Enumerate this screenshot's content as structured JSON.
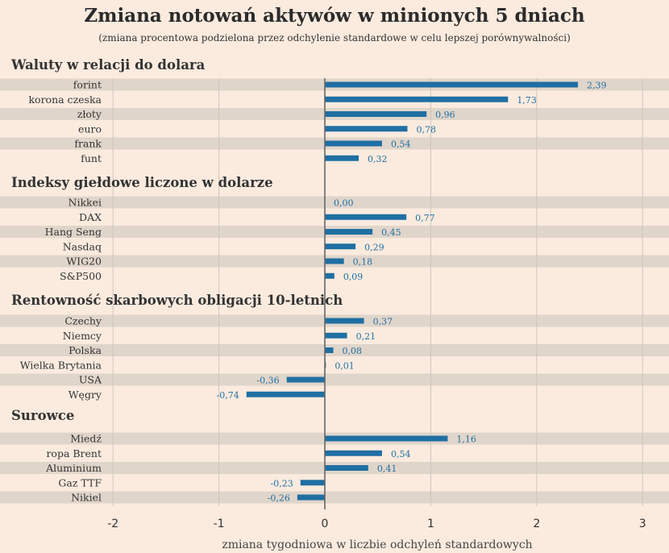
{
  "chart_data": {
    "type": "bar",
    "orientation": "horizontal",
    "title": "Zmiana notowań aktywów w minionych 5 dniach",
    "subtitle": "(zmiana procentowa podzielona przez odchylenie standardowe w celu lepszej porównywalności)",
    "xlabel": "zmiana tygodniowa w liczbie odchyleń standardowych",
    "xlim": [
      -2,
      3
    ],
    "xticks": [
      -2,
      -1,
      0,
      1,
      2,
      3
    ],
    "grid": true,
    "bar_color": "#1f6fa3",
    "groups": [
      {
        "name": "Waluty w relacji do dolara",
        "categories": [
          "forint",
          "korona czeska",
          "złoty",
          "euro",
          "frank",
          "funt"
        ],
        "values": [
          2.39,
          1.73,
          0.96,
          0.78,
          0.54,
          0.32
        ],
        "labels": [
          "2,39",
          "1,73",
          "0,96",
          "0,78",
          "0,54",
          "0,32"
        ]
      },
      {
        "name": "Indeksy giełdowe liczone w dolarze",
        "categories": [
          "Nikkei",
          "DAX",
          "Hang Seng",
          "Nasdaq",
          "WIG20",
          "S&P500"
        ],
        "values": [
          0.0,
          0.77,
          0.45,
          0.29,
          0.18,
          0.09
        ],
        "labels": [
          "0,00",
          "0,77",
          "0,45",
          "0,29",
          "0,18",
          "0,09"
        ]
      },
      {
        "name": "Rentowność skarbowych obligacji 10-letnich",
        "categories": [
          "Czechy",
          "Niemcy",
          "Polska",
          "Wielka Brytania",
          "USA",
          "Węgry"
        ],
        "values": [
          0.37,
          0.21,
          0.08,
          0.01,
          -0.36,
          -0.74
        ],
        "labels": [
          "0,37",
          "0,21",
          "0,08",
          "0,01",
          "-0,36",
          "-0,74"
        ]
      },
      {
        "name": "Surowce",
        "categories": [
          "Miedź",
          "ropa Brent",
          "Aluminium",
          "Gaz TTF",
          "Nikiel"
        ],
        "values": [
          1.16,
          0.54,
          0.41,
          -0.23,
          -0.26
        ],
        "labels": [
          "1,16",
          "0,54",
          "0,41",
          "-0,23",
          "-0,26"
        ]
      }
    ]
  }
}
